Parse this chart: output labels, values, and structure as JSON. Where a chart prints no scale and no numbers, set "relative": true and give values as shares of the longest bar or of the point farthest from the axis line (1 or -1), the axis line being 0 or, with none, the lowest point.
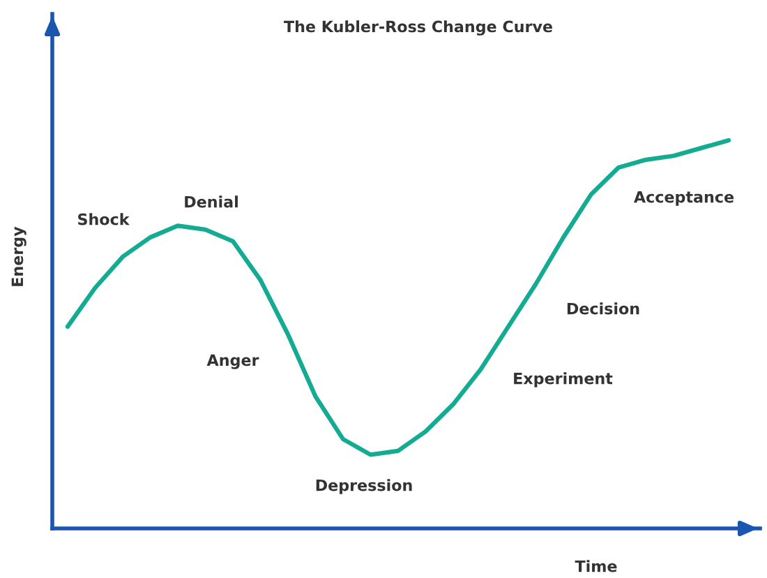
{
  "chart_data": {
    "type": "line",
    "title": "The Kubler-Ross Change Curve",
    "xlabel": "Time",
    "ylabel": "Energy",
    "relative": true,
    "categories": [
      null,
      null,
      null,
      null,
      null,
      null,
      null,
      null,
      null,
      null,
      null,
      null,
      null,
      null,
      null,
      null,
      null,
      null,
      null,
      null,
      null,
      null,
      null,
      null,
      null
    ],
    "series": [
      {
        "color": "#14ab93",
        "values": [
          0.52,
          0.62,
          0.7,
          0.75,
          0.78,
          0.77,
          0.74,
          0.64,
          0.5,
          0.34,
          0.23,
          0.19,
          0.2,
          0.25,
          0.32,
          0.41,
          0.52,
          0.63,
          0.75,
          0.86,
          0.93,
          0.95,
          0.96,
          0.98,
          1.0
        ]
      }
    ],
    "annotations": [
      "Shock",
      "Denial",
      "Anger",
      "Depression",
      "Experiment",
      "Decision",
      "Acceptance"
    ],
    "marker": "none",
    "line_style": "solid"
  }
}
